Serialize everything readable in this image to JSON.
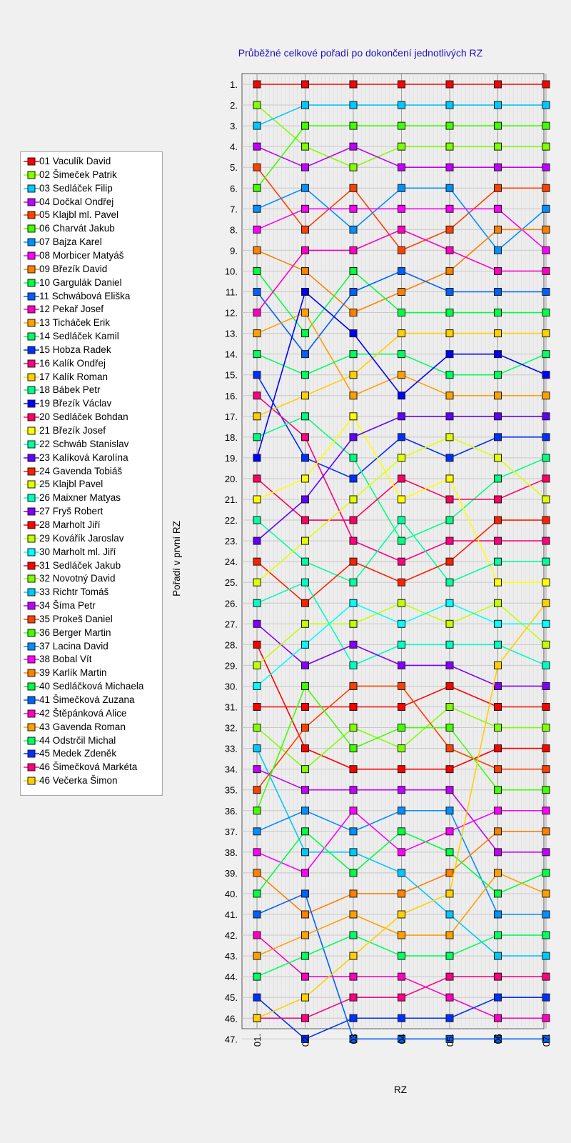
{
  "chart_data": {
    "type": "line",
    "title": "Průběžné celkové pořadí po dokončení jednotlivých RZ",
    "xlabel": "RZ",
    "ylabel": "Pořadí v první RZ",
    "categories": [
      "01.",
      "02.",
      "03",
      "04",
      "05.",
      "06",
      "07."
    ],
    "y_tick_labels": [
      "1.",
      "2.",
      "3.",
      "4.",
      "5.",
      "6.",
      "7.",
      "8.",
      "9.",
      "10.",
      "11.",
      "12.",
      "13.",
      "14.",
      "15.",
      "16.",
      "17.",
      "18.",
      "19.",
      "20.",
      "21.",
      "22.",
      "23.",
      "24.",
      "25.",
      "26.",
      "27.",
      "28.",
      "29.",
      "30.",
      "31.",
      "32.",
      "33.",
      "34.",
      "35.",
      "36.",
      "37.",
      "38.",
      "39.",
      "40.",
      "41.",
      "42.",
      "43.",
      "44.",
      "45.",
      "46.",
      "47."
    ],
    "ylim": [
      1,
      47
    ],
    "y_inverted": true,
    "legend_position": "left",
    "series": [
      {
        "name": "01 Vaculík David",
        "color": "#ff0000",
        "values": [
          1,
          1,
          1,
          1,
          1,
          1,
          1
        ]
      },
      {
        "name": "02 Šimeček Patrik",
        "color": "#80ff00",
        "values": [
          2,
          4,
          5,
          4,
          4,
          4,
          4
        ]
      },
      {
        "name": "03 Sedláček Filip",
        "color": "#00c8ff",
        "values": [
          3,
          2,
          2,
          2,
          2,
          2,
          2
        ]
      },
      {
        "name": "04 Dočkal Ondřej",
        "color": "#c000ff",
        "values": [
          4,
          5,
          4,
          5,
          5,
          5,
          5
        ]
      },
      {
        "name": "05 Klajbl ml. Pavel",
        "color": "#ff4000",
        "values": [
          5,
          8,
          6,
          9,
          8,
          6,
          6
        ]
      },
      {
        "name": "06 Charvát Jakub",
        "color": "#40ff00",
        "values": [
          6,
          3,
          3,
          3,
          3,
          3,
          3
        ]
      },
      {
        "name": "07 Bajza Karel",
        "color": "#0090ff",
        "values": [
          7,
          6,
          8,
          6,
          6,
          9,
          7
        ]
      },
      {
        "name": "08 Morbicer Matyáš",
        "color": "#ff00ff",
        "values": [
          8,
          7,
          7,
          7,
          7,
          7,
          9
        ]
      },
      {
        "name": "09 Březík David",
        "color": "#ff8000",
        "values": [
          9,
          10,
          12,
          11,
          10,
          8,
          8
        ]
      },
      {
        "name": "10 Gargulák Daniel",
        "color": "#00ff40",
        "values": [
          10,
          13,
          10,
          12,
          12,
          12,
          12
        ]
      },
      {
        "name": "11 Schwábová Eliška",
        "color": "#0060ff",
        "values": [
          11,
          14,
          11,
          10,
          11,
          11,
          11
        ]
      },
      {
        "name": "12 Pekař Josef",
        "color": "#ff00c0",
        "values": [
          12,
          9,
          9,
          8,
          9,
          10,
          10
        ]
      },
      {
        "name": "13 Ticháček Erik",
        "color": "#ffa000",
        "values": [
          13,
          12,
          16,
          15,
          16,
          16,
          16
        ]
      },
      {
        "name": "14 Sedláček Kamil",
        "color": "#00ff60",
        "values": [
          14,
          15,
          14,
          14,
          15,
          15,
          14
        ]
      },
      {
        "name": "15 Hobza Radek",
        "color": "#0030ff",
        "values": [
          15,
          19,
          20,
          18,
          19,
          18,
          18
        ]
      },
      {
        "name": "16 Kalík Ondřej",
        "color": "#ff0080",
        "values": [
          16,
          18,
          23,
          24,
          23,
          23,
          23
        ]
      },
      {
        "name": "17 Kalík Roman",
        "color": "#ffd000",
        "values": [
          17,
          16,
          15,
          13,
          13,
          13,
          13
        ]
      },
      {
        "name": "18 Bábek Petr",
        "color": "#00ff80",
        "values": [
          18,
          17,
          19,
          23,
          22,
          20,
          19
        ]
      },
      {
        "name": "19 Březík Václav",
        "color": "#0000ff",
        "values": [
          19,
          11,
          13,
          16,
          14,
          14,
          15
        ]
      },
      {
        "name": "20 Sedláček Bohdan",
        "color": "#ff0060",
        "values": [
          20,
          22,
          22,
          20,
          21,
          21,
          20
        ]
      },
      {
        "name": "21 Březík Josef",
        "color": "#ffff00",
        "values": [
          21,
          20,
          17,
          21,
          20,
          25,
          25
        ]
      },
      {
        "name": "22 Schwáb Stanislav",
        "color": "#00ffa0",
        "values": [
          22,
          24,
          25,
          22,
          25,
          24,
          24
        ]
      },
      {
        "name": "23 Kalíková Karolína",
        "color": "#6000ff",
        "values": [
          23,
          21,
          18,
          17,
          17,
          17,
          17
        ]
      },
      {
        "name": "24 Gavenda Tobiáš",
        "color": "#ff2000",
        "values": [
          24,
          26,
          24,
          25,
          24,
          22,
          22
        ]
      },
      {
        "name": "25 Klajbl Pavel",
        "color": "#e0ff00",
        "values": [
          25,
          23,
          21,
          19,
          18,
          19,
          21
        ]
      },
      {
        "name": "26 Maixner Matyas",
        "color": "#00ffc0",
        "values": [
          26,
          25,
          29,
          28,
          28,
          28,
          29
        ]
      },
      {
        "name": "27 Fryš Robert",
        "color": "#8000ff",
        "values": [
          27,
          29,
          28,
          29,
          29,
          30,
          30
        ]
      },
      {
        "name": "28 Marholt Jiří",
        "color": "#ff0000",
        "values": [
          28,
          33,
          34,
          34,
          34,
          33,
          33
        ]
      },
      {
        "name": "29 Kovářík Jaroslav",
        "color": "#c0ff00",
        "values": [
          29,
          27,
          27,
          26,
          27,
          26,
          28
        ]
      },
      {
        "name": "30 Marholt ml. Jiří",
        "color": "#00ffff",
        "values": [
          30,
          28,
          26,
          27,
          26,
          27,
          27
        ]
      },
      {
        "name": "31 Sedláček Jakub",
        "color": "#ff0000",
        "values": [
          31,
          31,
          31,
          31,
          30,
          31,
          31
        ]
      },
      {
        "name": "32 Novotný David",
        "color": "#80ff00",
        "values": [
          32,
          34,
          32,
          33,
          31,
          32,
          32
        ]
      },
      {
        "name": "33 Richtr Tomáš",
        "color": "#00c8ff",
        "values": [
          33,
          38,
          38,
          39,
          41,
          43,
          43
        ]
      },
      {
        "name": "34 Šíma Petr",
        "color": "#c000ff",
        "values": [
          34,
          35,
          35,
          35,
          35,
          38,
          38
        ]
      },
      {
        "name": "35 Prokeš Daniel",
        "color": "#ff4000",
        "values": [
          35,
          32,
          30,
          30,
          33,
          34,
          34
        ]
      },
      {
        "name": "36 Berger Martin",
        "color": "#40ff00",
        "values": [
          36,
          30,
          33,
          32,
          32,
          35,
          35
        ]
      },
      {
        "name": "37 Lacina David",
        "color": "#0090ff",
        "values": [
          37,
          36,
          37,
          36,
          36,
          41,
          41
        ]
      },
      {
        "name": "38 Bobal Vít",
        "color": "#ff00ff",
        "values": [
          38,
          39,
          36,
          38,
          37,
          36,
          36
        ]
      },
      {
        "name": "39 Karlík Martin",
        "color": "#ff8000",
        "values": [
          39,
          41,
          40,
          40,
          39,
          37,
          37
        ]
      },
      {
        "name": "40 Sedláčková Michaela",
        "color": "#00ff40",
        "values": [
          40,
          37,
          39,
          37,
          38,
          40,
          39
        ]
      },
      {
        "name": "41 Šimečková Zuzana",
        "color": "#0060ff",
        "values": [
          41,
          40,
          47,
          47,
          47,
          47,
          47
        ]
      },
      {
        "name": "42 Štěpánková Alice",
        "color": "#ff00c0",
        "values": [
          42,
          44,
          44,
          44,
          45,
          46,
          46
        ]
      },
      {
        "name": "43 Gavenda Roman",
        "color": "#ffa000",
        "values": [
          43,
          42,
          41,
          42,
          42,
          39,
          40
        ]
      },
      {
        "name": "44 Odstrčil Michal",
        "color": "#00ff60",
        "values": [
          44,
          43,
          42,
          43,
          43,
          42,
          42
        ]
      },
      {
        "name": "45 Medek Zdeněk",
        "color": "#0030ff",
        "values": [
          45,
          47,
          46,
          46,
          46,
          45,
          45
        ]
      },
      {
        "name": "46 Šimečková Markéta",
        "color": "#ff0080",
        "values": [
          46,
          46,
          45,
          45,
          44,
          44,
          44
        ]
      },
      {
        "name": "46 Večerka Šimon",
        "color": "#ffd000",
        "values": [
          46,
          45,
          43,
          41,
          40,
          29,
          26
        ]
      }
    ]
  }
}
